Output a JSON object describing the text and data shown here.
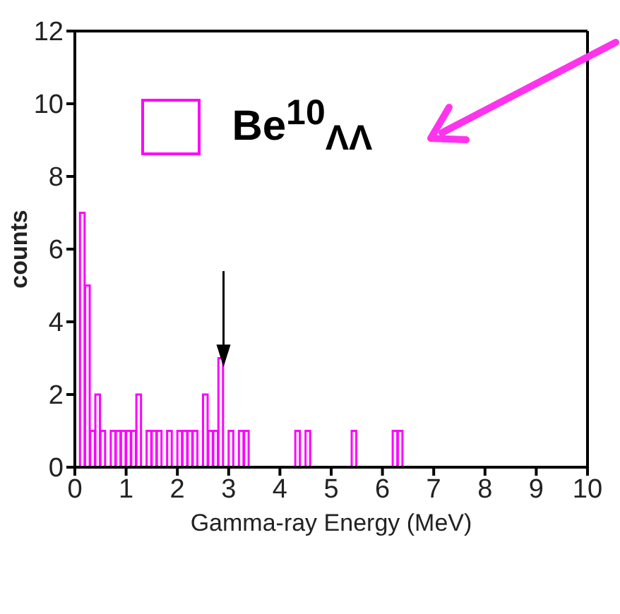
{
  "chart_data": {
    "type": "histogram",
    "xlabel": "Gamma-ray Energy (MeV)",
    "ylabel": "counts",
    "bins": [
      0,
      0.1,
      0.2,
      0.3,
      0.4,
      0.5,
      0.6,
      0.7,
      0.8,
      0.9,
      1,
      1.1,
      1.2,
      1.3,
      1.4,
      1.5,
      1.6,
      1.7,
      1.8,
      1.9,
      2,
      2.1,
      2.2,
      2.3,
      2.4,
      2.5,
      2.6,
      2.7,
      2.8,
      2.9,
      3,
      3.1,
      3.2,
      3.3,
      3.4,
      3.5,
      3.6,
      3.7,
      3.8,
      3.9,
      4,
      4.1,
      4.2,
      4.3,
      4.4,
      4.5,
      4.6,
      4.7,
      4.8,
      4.9,
      5,
      5.1,
      5.2,
      5.3,
      5.4,
      5.5,
      5.6,
      5.7,
      5.8,
      5.9,
      6,
      6.1,
      6.2,
      6.3,
      6.4,
      6.5
    ],
    "series": [
      {
        "name": "Be$^{10}$$_{ΛΛ}$",
        "color": "#ff00ff",
        "values": [
          0,
          7,
          5,
          1,
          2,
          1,
          0,
          1,
          1,
          1,
          1,
          1,
          2,
          0,
          1,
          1,
          1,
          0,
          1,
          0,
          1,
          1,
          1,
          1,
          0,
          2,
          1,
          1,
          3,
          0,
          1,
          0,
          1,
          1,
          0,
          0,
          0,
          0,
          0,
          0,
          0,
          0,
          0,
          1,
          0,
          1,
          0,
          0,
          0,
          0,
          0,
          0,
          0,
          0,
          1,
          0,
          0,
          0,
          0,
          0,
          0,
          0,
          1,
          1,
          0
        ]
      }
    ],
    "xlim": [
      0,
      10
    ],
    "xticks": [
      0,
      1,
      2,
      3,
      4,
      5,
      6,
      7,
      8,
      9,
      10
    ],
    "ylim": [
      0,
      12
    ],
    "yticks": [
      0,
      2,
      4,
      6,
      8,
      10,
      12
    ],
    "legend": "top left"
  }
}
